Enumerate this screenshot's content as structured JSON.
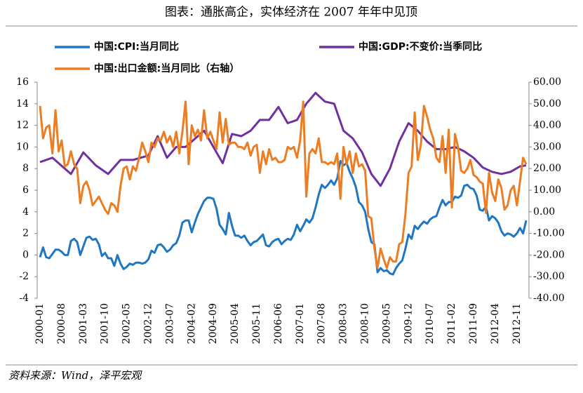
{
  "chart_data": {
    "type": "line",
    "title": "图表：通胀高企，实体经济在 2007 年年中见顶",
    "source": "资料来源：Wind，泽平宏观",
    "categories": [
      "2000-01",
      null,
      null,
      null,
      null,
      null,
      null,
      "2000-08",
      null,
      null,
      null,
      null,
      null,
      null,
      "2001-03",
      null,
      null,
      null,
      null,
      null,
      null,
      "2001-10",
      null,
      null,
      null,
      null,
      null,
      null,
      "2002-05",
      null,
      null,
      null,
      null,
      null,
      null,
      "2002-12",
      null,
      null,
      null,
      null,
      null,
      null,
      "2003-07",
      null,
      null,
      null,
      null,
      null,
      null,
      "2004-02",
      null,
      null,
      null,
      null,
      null,
      null,
      "2004-09",
      null,
      null,
      null,
      null,
      null,
      null,
      "2005-04",
      null,
      null,
      null,
      null,
      null,
      null,
      "2005-11",
      null,
      null,
      null,
      null,
      null,
      null,
      "2006-06",
      null,
      null,
      null,
      null,
      null,
      null,
      "2007-01",
      null,
      null,
      null,
      null,
      null,
      null,
      "2007-08",
      null,
      null,
      null,
      null,
      null,
      null,
      "2008-03",
      null,
      null,
      null,
      null,
      null,
      null,
      "2008-10",
      null,
      null,
      null,
      null,
      null,
      null,
      "2009-05",
      null,
      null,
      null,
      null,
      null,
      null,
      "2009-12",
      null,
      null,
      null,
      null,
      null,
      null,
      "2010-07",
      null,
      null,
      null,
      null,
      null,
      null,
      "2011-02",
      null,
      null,
      null,
      null,
      null,
      null,
      "2011-09",
      null,
      null,
      null,
      null,
      null,
      null,
      "2012-04",
      null,
      null,
      null,
      null,
      null,
      null,
      "2012-11",
      null,
      null,
      null
    ],
    "series": [
      {
        "name": "中国:CPI:当月同比",
        "color": "#1f77c4",
        "values": [
          -0.2,
          0.7,
          -0.2,
          -0.3,
          0.1,
          0.5,
          0.5,
          0.3,
          0,
          0,
          1.3,
          1.5,
          1.2,
          0,
          0.8,
          1.6,
          1.7,
          1.4,
          1.5,
          1,
          -0.1,
          0.2,
          -0.3,
          -0.3,
          -1,
          0,
          -0.8,
          -1.3,
          -1.1,
          -0.8,
          -0.9,
          -0.7,
          -0.7,
          -0.8,
          -0.7,
          -0.4,
          0.4,
          0.2,
          0.9,
          1,
          0.7,
          0.3,
          0.5,
          0.9,
          1.1,
          1.8,
          3,
          3.2,
          3.2,
          2.1,
          3,
          3.8,
          4.4,
          5,
          5.3,
          5.3,
          5.2,
          4.3,
          2.8,
          2.4,
          1.9,
          3.9,
          2.7,
          1.8,
          1.8,
          1.6,
          1.8,
          1.3,
          0.9,
          1.2,
          1.3,
          1.6,
          1.9,
          0.9,
          0.8,
          1.2,
          1.4,
          1.5,
          1,
          1.3,
          1.5,
          1.4,
          1.9,
          2.8,
          2.2,
          2.7,
          3.3,
          3,
          3.4,
          4.4,
          5.6,
          6.5,
          6.2,
          6.5,
          6.9,
          6.5,
          7.1,
          8.7,
          8.3,
          8.5,
          7.7,
          7.1,
          6.3,
          4.9,
          4.6,
          4,
          2.4,
          1.2,
          1,
          -1.6,
          -1.2,
          -1.5,
          -1.4,
          -1.7,
          -1.8,
          -1.2,
          -0.8,
          -0.5,
          0.6,
          1.9,
          1.5,
          2.7,
          2.4,
          2.8,
          3.1,
          2.9,
          3.3,
          3.5,
          3.6,
          4.4,
          5.1,
          4.6,
          4.9,
          4.9,
          5.4,
          5.3,
          5.5,
          6.4,
          6.5,
          6.2,
          6.1,
          5.5,
          4.2,
          4.1,
          4.5,
          3.2,
          3.6,
          3.4,
          3,
          2.2,
          1.8,
          2,
          1.9,
          1.7,
          2,
          2.5,
          2,
          3.2
        ]
      },
      {
        "name": "中国:GDP:不变价:当季同比",
        "color": "#7030a0",
        "x": [
          "2000-01",
          "2000-05",
          "2000-11",
          "2001-03",
          "2001-07",
          "2001-11",
          "2002-03",
          "2002-07",
          "2002-12",
          "2003-03",
          "2003-06",
          "2003-09",
          "2003-12",
          "2004-06",
          "2004-12",
          "2005-03",
          "2005-06",
          "2005-09",
          "2005-12",
          "2006-03",
          "2006-06",
          "2006-09",
          "2006-12",
          "2007-03",
          "2007-06",
          "2007-09",
          "2007-12",
          "2008-03",
          "2008-06",
          "2008-09",
          "2008-12",
          "2009-03",
          "2009-06",
          "2009-09",
          "2009-12",
          "2010-03",
          "2010-06",
          "2010-09",
          "2010-12",
          "2011-03",
          "2011-06",
          "2011-09",
          "2011-12",
          "2012-03",
          "2012-06",
          "2012-09",
          "2012-12",
          "2013-02"
        ],
        "values": [
          8.6,
          9.0,
          7.5,
          9.5,
          8.3,
          7.5,
          8.8,
          8.8,
          9.2,
          11.0,
          9.0,
          10.0,
          10.0,
          11.5,
          8.5,
          11.2,
          11.0,
          11.5,
          12.5,
          12.5,
          13.7,
          12.2,
          12.5,
          14.0,
          15.0,
          14.2,
          14.0,
          11.5,
          10.8,
          9.5,
          7.5,
          6.4,
          8.0,
          10.5,
          12.2,
          11.5,
          10.5,
          9.8,
          9.8,
          10.0,
          9.6,
          9.0,
          8.1,
          7.7,
          7.5,
          7.7,
          8.2,
          8.3
        ]
      },
      {
        "name": "中国:出口金额:当月同比（右轴）",
        "color": "#ed7d22",
        "axis": "y2",
        "values": [
          49,
          34,
          39,
          40,
          27,
          47,
          28,
          33,
          21,
          22,
          28,
          22,
          20,
          4,
          12,
          14,
          10,
          3,
          5,
          7,
          4,
          1,
          -1,
          4,
          3,
          0,
          12,
          20,
          21,
          15,
          21,
          19,
          25,
          32,
          28,
          23,
          32,
          30,
          34,
          33,
          37,
          32,
          35,
          30,
          37,
          27,
          37,
          51,
          22,
          40,
          35,
          38,
          33,
          47,
          34,
          37,
          33,
          29,
          46,
          32,
          43,
          31,
          32,
          32,
          30,
          30,
          29,
          32,
          26,
          30,
          31,
          18,
          28,
          22,
          29,
          24,
          25,
          23,
          23,
          24,
          30,
          29,
          30,
          25,
          33,
          51,
          7,
          27,
          29,
          27,
          34,
          23,
          23,
          22,
          23,
          22,
          27,
          6,
          30,
          22,
          28,
          18,
          27,
          21,
          22,
          19,
          -2,
          -3,
          -17,
          -26,
          -17,
          -22,
          -26,
          -21,
          -23,
          -23,
          -15,
          -14,
          -1,
          18,
          21,
          46,
          24,
          31,
          49,
          44,
          38,
          34,
          25,
          23,
          35,
          18,
          38,
          2,
          36,
          30,
          19,
          18,
          20,
          24,
          17,
          16,
          14,
          13,
          -0.5,
          18,
          9,
          5,
          15,
          11,
          1,
          3,
          10,
          12,
          3,
          14,
          25,
          22
        ]
      }
    ],
    "ylim": [
      -4,
      16
    ],
    "yticks": [
      -4,
      -2,
      0,
      2,
      4,
      6,
      8,
      10,
      12,
      14,
      16
    ],
    "y2lim": [
      -40,
      60
    ],
    "y2ticks": [
      {
        "value": -40,
        "label": "-40.00"
      },
      {
        "value": -30,
        "label": "-30.00"
      },
      {
        "value": -20,
        "label": "-20.00"
      },
      {
        "value": -10,
        "label": "-10.00"
      },
      {
        "value": 0,
        "label": "0.00"
      },
      {
        "value": 10,
        "label": "10.00"
      },
      {
        "value": 20,
        "label": "20.00"
      },
      {
        "value": 30,
        "label": "30.00"
      },
      {
        "value": 40,
        "label": "40.00"
      },
      {
        "value": 50,
        "label": "50.00"
      },
      {
        "value": 60,
        "label": "60.00"
      }
    ],
    "grid": false
  }
}
